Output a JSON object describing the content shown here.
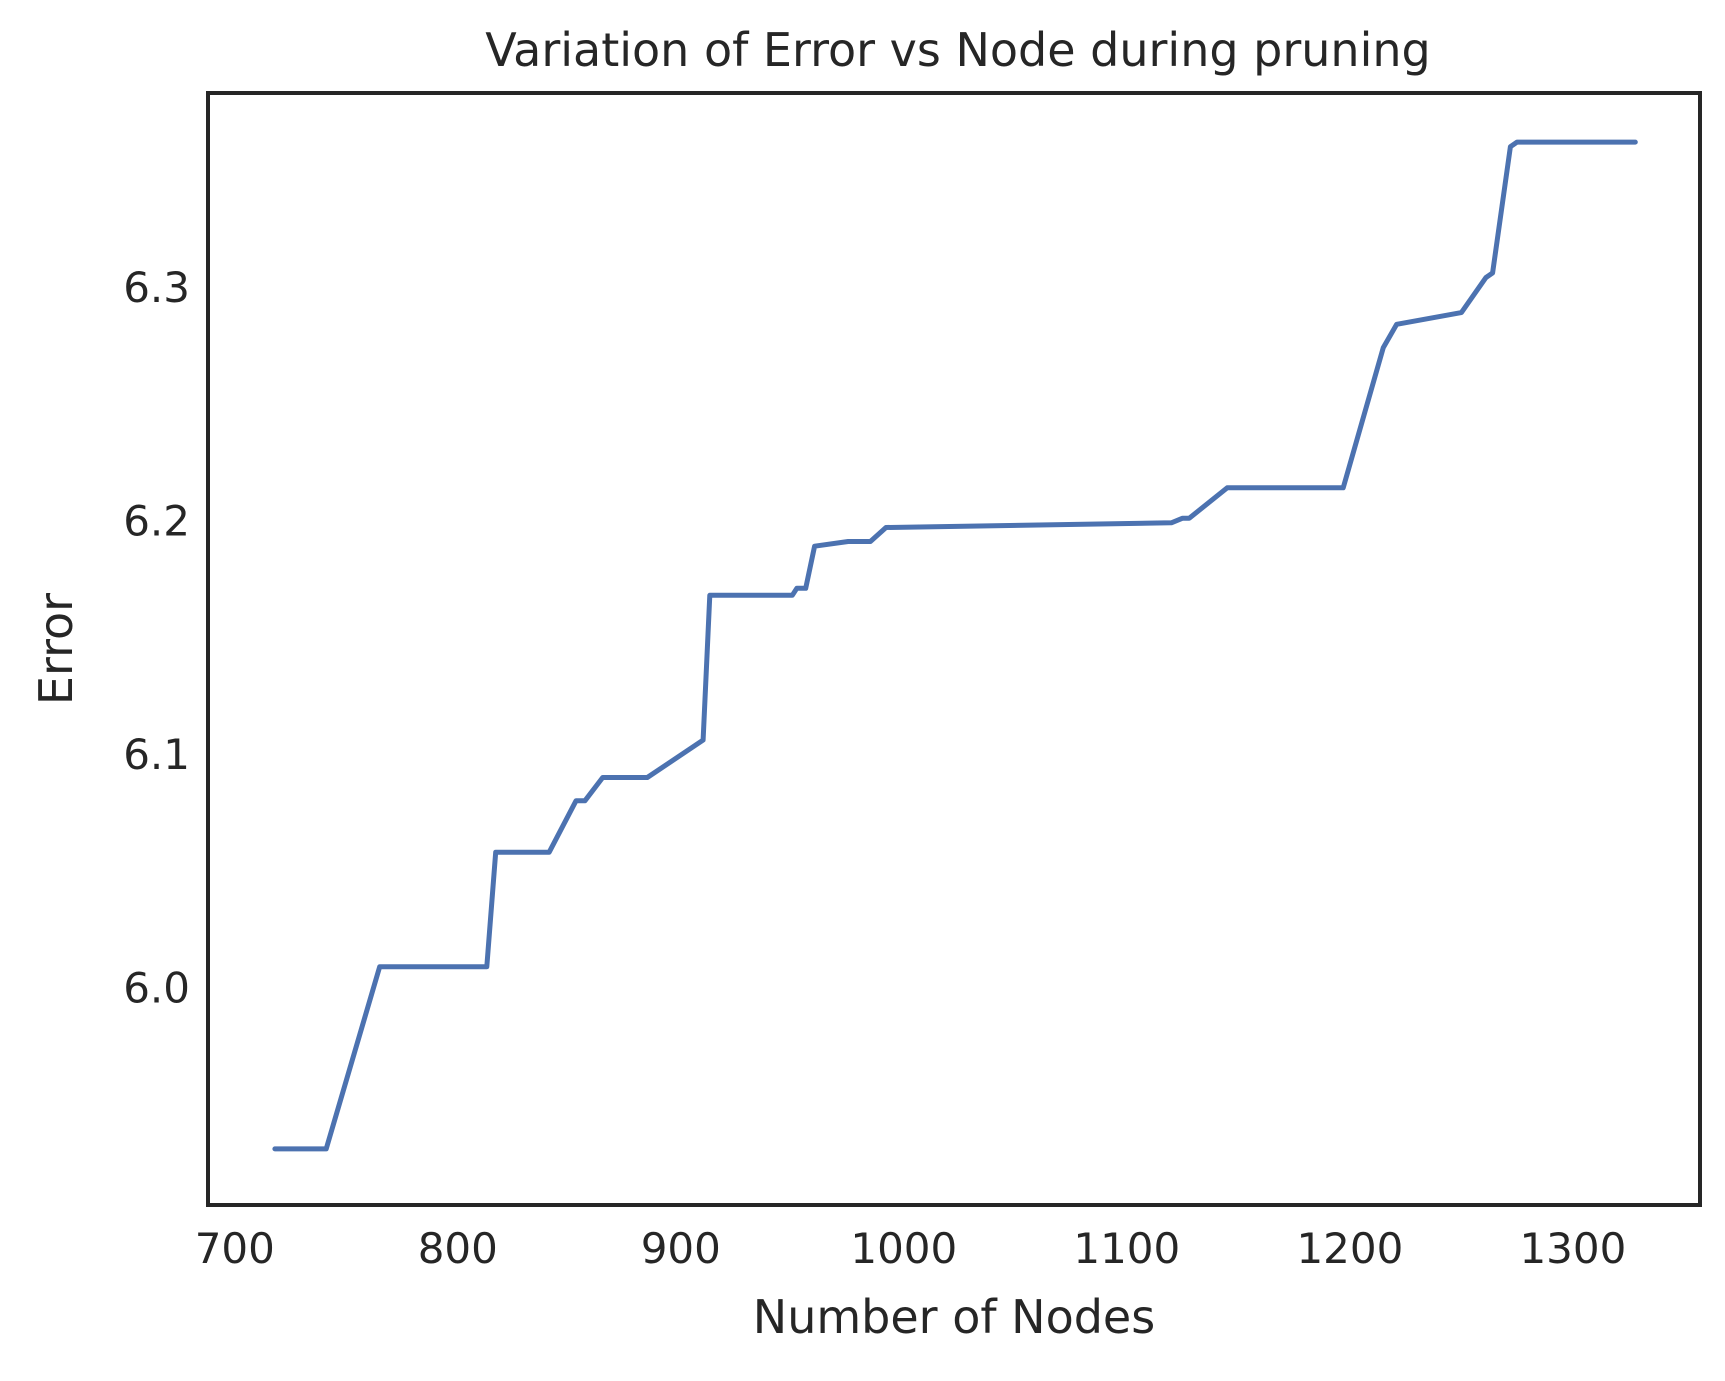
{
  "chart_data": {
    "type": "line",
    "title": "Variation of Error vs Node during pruning",
    "xlabel": "Number of Nodes",
    "ylabel": "Error",
    "xlim": [
      688,
      1357
    ],
    "ylim": [
      5.907,
      6.383
    ],
    "xticks": [
      700,
      800,
      900,
      1000,
      1100,
      1200,
      1300
    ],
    "xtick_labels": [
      "700",
      "800",
      "900",
      "1000",
      "1100",
      "1200",
      "1300"
    ],
    "yticks": [
      6.0,
      6.1,
      6.2,
      6.3
    ],
    "ytick_labels": [
      "6.0",
      "6.1",
      "6.2",
      "6.3"
    ],
    "grid": false,
    "legend": false,
    "series": [
      {
        "color": "#4c72b0",
        "x": [
          718,
          741,
          765,
          813,
          817,
          841,
          853,
          857,
          865,
          885,
          910,
          913,
          950,
          952,
          956,
          960,
          975,
          985,
          992,
          1120,
          1125,
          1128,
          1145,
          1197,
          1215,
          1221,
          1250,
          1261,
          1264,
          1272,
          1275,
          1328
        ],
        "y": [
          5.931,
          5.931,
          6.009,
          6.009,
          6.058,
          6.058,
          6.08,
          6.08,
          6.09,
          6.09,
          6.106,
          6.168,
          6.168,
          6.171,
          6.171,
          6.189,
          6.191,
          6.191,
          6.197,
          6.199,
          6.201,
          6.201,
          6.214,
          6.214,
          6.274,
          6.284,
          6.289,
          6.304,
          6.306,
          6.36,
          6.362,
          6.362
        ]
      }
    ]
  }
}
